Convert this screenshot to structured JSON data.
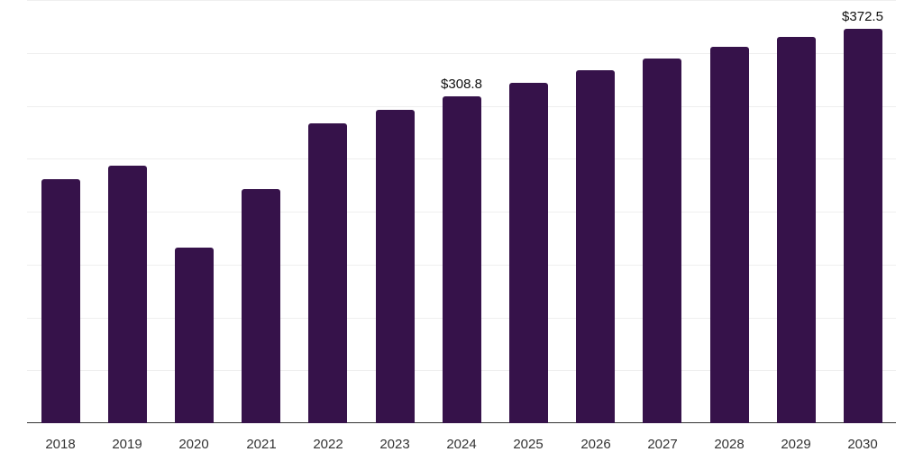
{
  "chart_data": {
    "type": "bar",
    "title": "",
    "xlabel": "",
    "ylabel": "",
    "categories": [
      "2018",
      "2019",
      "2020",
      "2021",
      "2022",
      "2023",
      "2024",
      "2025",
      "2026",
      "2027",
      "2028",
      "2029",
      "2030"
    ],
    "values": [
      230.3,
      243.1,
      166.3,
      220.9,
      283.2,
      296.0,
      308.8,
      321.6,
      333.5,
      344.6,
      355.7,
      365.1,
      372.5
    ],
    "data_labels": [
      {
        "category": "2024",
        "text": "$308.8"
      },
      {
        "category": "2030",
        "text": "$372.5"
      }
    ],
    "ylim": [
      0,
      400
    ],
    "gridlines": [
      50,
      100,
      150,
      200,
      250,
      300,
      350,
      400
    ],
    "grid": true,
    "legend": null,
    "bar_color": "#36124a"
  }
}
